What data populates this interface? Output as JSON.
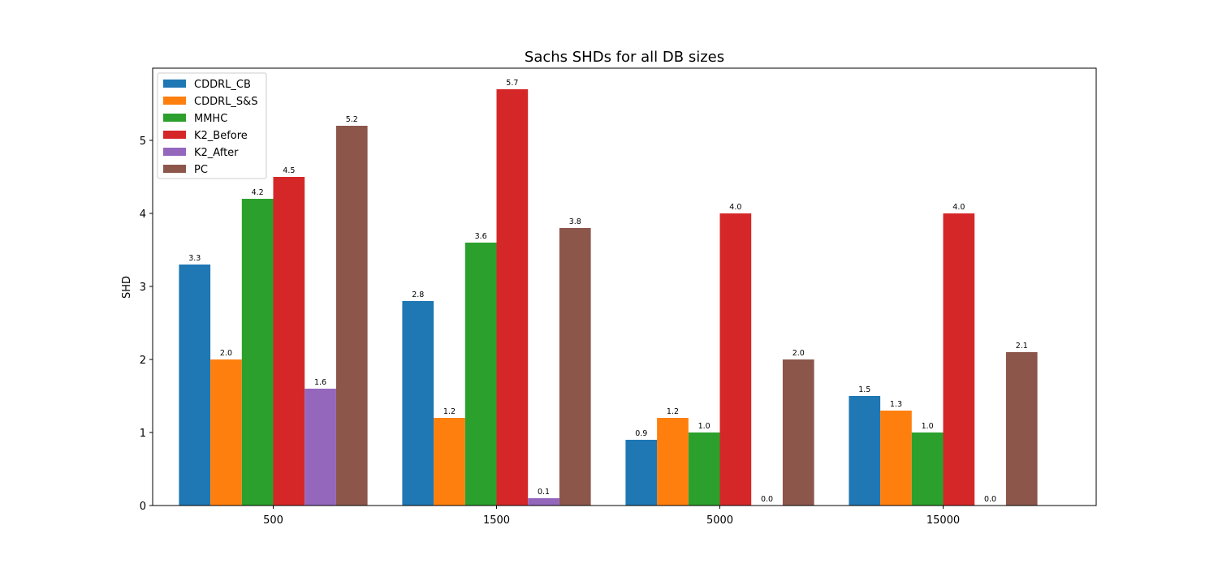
{
  "chart_data": {
    "type": "bar",
    "title": "Sachs SHDs for all DB sizes",
    "xlabel": "",
    "ylabel": "SHD",
    "ylim": [
      0,
      6
    ],
    "yticks": [
      0,
      1,
      2,
      3,
      4,
      5
    ],
    "categories": [
      "500",
      "1500",
      "5000",
      "15000"
    ],
    "legend_position": "top-left",
    "series": [
      {
        "name": "CDDRL_CB",
        "color": "#1f77b4",
        "values": [
          3.3,
          2.8,
          0.9,
          1.5
        ],
        "labels": [
          "3.3",
          "2.8",
          "0.9",
          "1.5"
        ]
      },
      {
        "name": "CDDRL_S&S",
        "color": "#ff7f0e",
        "values": [
          2.0,
          1.2,
          1.2,
          1.3
        ],
        "labels": [
          "2.0",
          "1.2",
          "1.2",
          "1.3"
        ]
      },
      {
        "name": "MMHC",
        "color": "#2ca02c",
        "values": [
          4.2,
          3.6,
          1.0,
          1.0
        ],
        "labels": [
          "4.2",
          "3.6",
          "1.0",
          "1.0"
        ]
      },
      {
        "name": "K2_Before",
        "color": "#d62728",
        "values": [
          4.5,
          5.7,
          4.0,
          4.0
        ],
        "labels": [
          "4.5",
          "5.7",
          "4.0",
          "4.0"
        ]
      },
      {
        "name": "K2_After",
        "color": "#9467bd",
        "values": [
          1.6,
          0.1,
          0.0,
          0.0
        ],
        "labels": [
          "1.6",
          "0.1",
          "0.0",
          "0.0"
        ]
      },
      {
        "name": "PC",
        "color": "#8c564b",
        "values": [
          5.2,
          3.8,
          2.0,
          2.1
        ],
        "labels": [
          "5.2",
          "3.8",
          "2.0",
          "2.1"
        ]
      }
    ]
  }
}
